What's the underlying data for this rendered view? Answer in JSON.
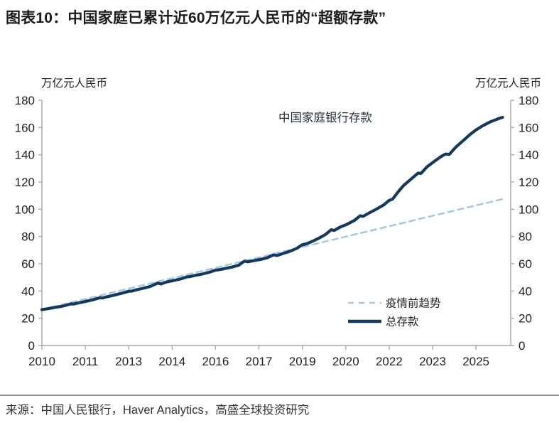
{
  "page": {
    "title": "图表10：中国家庭已累计近60万亿元人民币的“超额存款”",
    "source": "来源：中国人民银行，Haver Analytics，高盛全球投资研究"
  },
  "chart_data": {
    "type": "line",
    "title_annotation": "中国家庭银行存款",
    "unit_label_left": "万亿元人民币",
    "unit_label_right": "万亿元人民币",
    "xlim": [
      2010,
      2026.2
    ],
    "ylim": [
      0,
      180
    ],
    "grid": false,
    "legend_position": "inside-lower-right",
    "y_ticks": [
      0,
      20,
      40,
      60,
      80,
      100,
      120,
      140,
      160,
      180
    ],
    "x_ticks": [
      {
        "pos": 2010.0,
        "label": "2010"
      },
      {
        "pos": 2011.5,
        "label": "2011"
      },
      {
        "pos": 2013.0,
        "label": "2013"
      },
      {
        "pos": 2014.5,
        "label": "2014"
      },
      {
        "pos": 2016.0,
        "label": "2016"
      },
      {
        "pos": 2017.5,
        "label": "2017"
      },
      {
        "pos": 2019.0,
        "label": "2019"
      },
      {
        "pos": 2020.5,
        "label": "2020"
      },
      {
        "pos": 2022.0,
        "label": "2022"
      },
      {
        "pos": 2023.5,
        "label": "2023"
      },
      {
        "pos": 2025.0,
        "label": "2025"
      }
    ],
    "colors": {
      "axis": "#a6a6a6",
      "tick_label": "#1f1f1f",
      "annotation": "#1f2b38"
    },
    "series": [
      {
        "id": "pre-pandemic-trend",
        "name": "疫情前趋势",
        "color": "#a9c7e3",
        "dashed": true,
        "points": [
          [
            2010.0,
            26.5
          ],
          [
            2025.92,
            107.5
          ]
        ]
      },
      {
        "id": "total-deposits",
        "name": "总存款",
        "color": "#14395c",
        "dashed": false,
        "points": [
          [
            2010.0,
            26.3
          ],
          [
            2010.17,
            26.9
          ],
          [
            2010.33,
            27.5
          ],
          [
            2010.5,
            28.1
          ],
          [
            2010.67,
            28.7
          ],
          [
            2010.83,
            29.5
          ],
          [
            2011.0,
            30.6
          ],
          [
            2011.1,
            30.4
          ],
          [
            2011.25,
            31.2
          ],
          [
            2011.5,
            32.3
          ],
          [
            2011.75,
            33.5
          ],
          [
            2012.0,
            35.0
          ],
          [
            2012.1,
            34.9
          ],
          [
            2012.25,
            35.8
          ],
          [
            2012.5,
            37.0
          ],
          [
            2012.75,
            38.3
          ],
          [
            2013.0,
            39.8
          ],
          [
            2013.1,
            39.9
          ],
          [
            2013.25,
            40.8
          ],
          [
            2013.5,
            42.0
          ],
          [
            2013.75,
            43.4
          ],
          [
            2014.0,
            45.8
          ],
          [
            2014.12,
            45.2
          ],
          [
            2014.3,
            46.6
          ],
          [
            2014.55,
            47.7
          ],
          [
            2014.8,
            48.9
          ],
          [
            2015.0,
            50.3
          ],
          [
            2015.12,
            50.6
          ],
          [
            2015.3,
            51.5
          ],
          [
            2015.55,
            52.5
          ],
          [
            2015.8,
            53.9
          ],
          [
            2016.0,
            55.3
          ],
          [
            2016.12,
            55.6
          ],
          [
            2016.3,
            56.4
          ],
          [
            2016.55,
            57.5
          ],
          [
            2016.8,
            58.9
          ],
          [
            2017.0,
            62.0
          ],
          [
            2017.12,
            61.4
          ],
          [
            2017.3,
            62.2
          ],
          [
            2017.55,
            63.2
          ],
          [
            2017.8,
            64.5
          ],
          [
            2018.0,
            66.5
          ],
          [
            2018.12,
            66.0
          ],
          [
            2018.3,
            67.3
          ],
          [
            2018.55,
            69.0
          ],
          [
            2018.8,
            71.2
          ],
          [
            2019.0,
            74.0
          ],
          [
            2019.12,
            74.5
          ],
          [
            2019.3,
            76.0
          ],
          [
            2019.55,
            78.5
          ],
          [
            2019.8,
            81.5
          ],
          [
            2020.0,
            85.0
          ],
          [
            2020.1,
            84.4
          ],
          [
            2020.3,
            86.8
          ],
          [
            2020.55,
            89.0
          ],
          [
            2020.8,
            91.8
          ],
          [
            2021.0,
            95.2
          ],
          [
            2021.1,
            94.8
          ],
          [
            2021.3,
            97.2
          ],
          [
            2021.55,
            100.0
          ],
          [
            2021.8,
            103.0
          ],
          [
            2022.0,
            106.5
          ],
          [
            2022.12,
            107.5
          ],
          [
            2022.3,
            112.5
          ],
          [
            2022.5,
            117.5
          ],
          [
            2022.75,
            122.0
          ],
          [
            2023.0,
            126.5
          ],
          [
            2023.1,
            126.3
          ],
          [
            2023.3,
            131.0
          ],
          [
            2023.55,
            135.0
          ],
          [
            2023.8,
            138.8
          ],
          [
            2023.95,
            140.5
          ],
          [
            2024.08,
            140.3
          ],
          [
            2024.3,
            145.5
          ],
          [
            2024.55,
            150.2
          ],
          [
            2024.8,
            155.0
          ],
          [
            2025.0,
            158.2
          ],
          [
            2025.25,
            161.5
          ],
          [
            2025.5,
            164.2
          ],
          [
            2025.75,
            166.3
          ],
          [
            2025.92,
            167.5
          ]
        ]
      }
    ]
  }
}
